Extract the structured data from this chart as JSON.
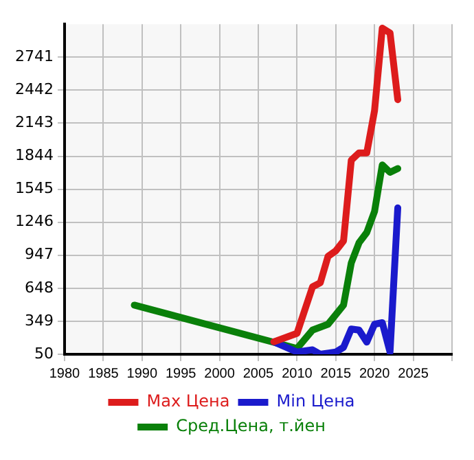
{
  "chart_data": {
    "type": "line",
    "xlim": [
      1980,
      2030
    ],
    "ylim": [
      50,
      3040
    ],
    "xticks": [
      1980,
      1985,
      1990,
      1995,
      2000,
      2005,
      2010,
      2015,
      2020,
      2025,
      {
        "value": 2030,
        "label": null
      }
    ],
    "yticks": [
      50,
      349,
      648,
      947,
      1246,
      1545,
      1844,
      2143,
      2442,
      2741
    ],
    "grid": true,
    "legend": "bottom",
    "marker": "none",
    "line_style": "solid",
    "series": [
      {
        "name": "Max Цена",
        "color": "#dd1c1c",
        "x": [
          2007,
          2010,
          2012,
          2013,
          2014,
          2015,
          2016,
          2017,
          2018,
          2019,
          2020,
          2021,
          2022,
          2023
        ],
        "values": [
          163,
          240,
          661,
          698,
          937,
          987,
          1077,
          1808,
          1874,
          1874,
          2256,
          3004,
          2961,
          2356
        ]
      },
      {
        "name": "Min Цена",
        "color": "#1a1acc",
        "x": [
          2007,
          2010,
          2012,
          2013,
          2015,
          2016,
          2017,
          2018,
          2019,
          2020,
          2021,
          2022,
          2023
        ],
        "values": [
          163,
          70,
          90,
          50,
          70,
          113,
          279,
          269,
          160,
          322,
          336,
          70,
          1376
        ]
      },
      {
        "name": "Сред.Цена, т.йен",
        "color": "#0a800a",
        "x": [
          1989,
          2010,
          2012,
          2014,
          2016,
          2017,
          2018,
          2019,
          2020,
          2021,
          2022,
          2023
        ],
        "values": [
          495,
          103,
          269,
          322,
          495,
          877,
          1060,
          1153,
          1343,
          1765,
          1698,
          1732
        ]
      }
    ]
  }
}
